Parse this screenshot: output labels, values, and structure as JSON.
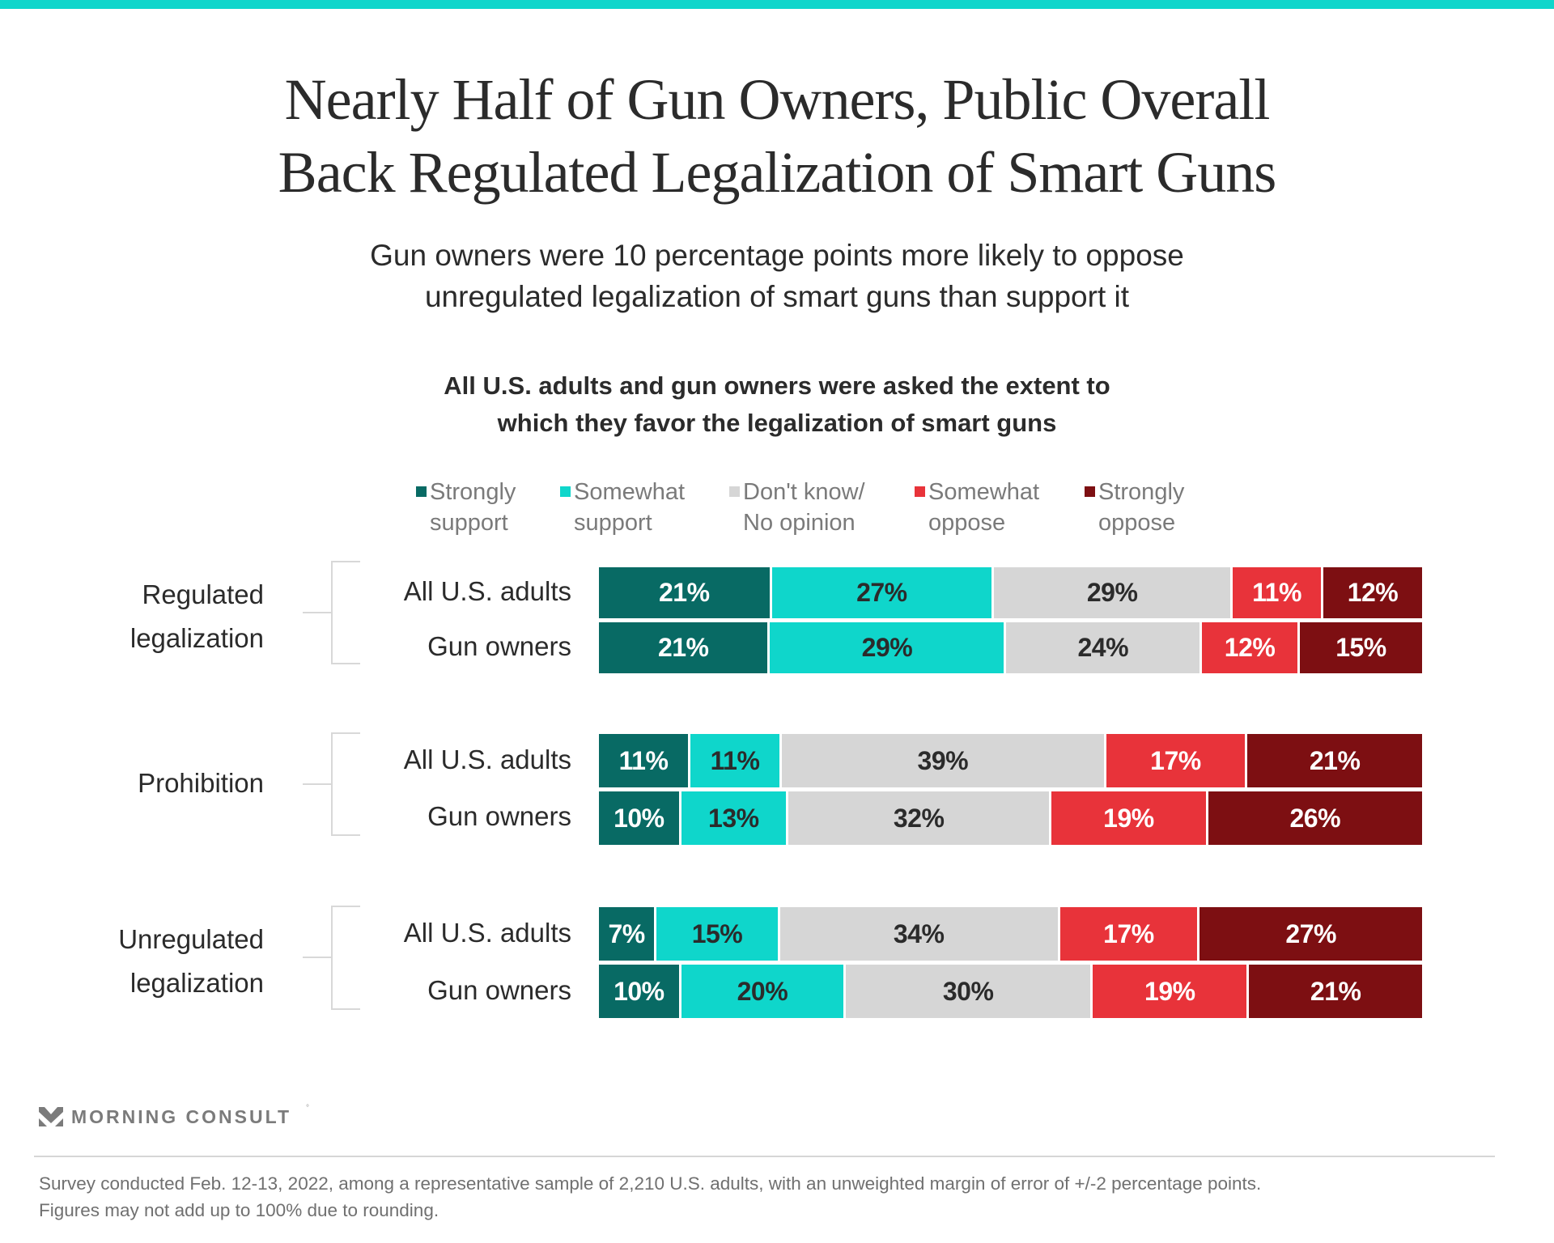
{
  "brand_color": "#0fd6cb",
  "title": {
    "line1": "Nearly Half of Gun Owners, Public Overall",
    "line2": "Back Regulated Legalization of Smart Guns"
  },
  "subtitle": {
    "line1": "Gun owners were 10 percentage points more likely to oppose",
    "line2": "unregulated legalization of smart guns than support it"
  },
  "question": {
    "line1": "All U.S. adults and gun owners were asked the extent to",
    "line2": "which they favor the legalization of smart guns"
  },
  "legend": [
    {
      "line1": "Strongly",
      "line2": "support",
      "color": "#086a64"
    },
    {
      "line1": "Somewhat",
      "line2": "support",
      "color": "#0fd6cb"
    },
    {
      "line1": "Don't know/",
      "line2": "No opinion",
      "color": "#d6d6d6"
    },
    {
      "line1": "Somewhat",
      "line2": "oppose",
      "color": "#e8333a"
    },
    {
      "line1": "Strongly",
      "line2": "oppose",
      "color": "#7d0f12"
    }
  ],
  "chart_data": {
    "type": "bar",
    "orientation": "horizontal-stacked-100",
    "title": "All U.S. adults and gun owners were asked the extent to which they favor the legalization of smart guns",
    "xlabel": "",
    "ylabel": "",
    "legend_position": "top",
    "grid": false,
    "series_names": [
      "Strongly support",
      "Somewhat support",
      "Don't know/No opinion",
      "Somewhat oppose",
      "Strongly oppose"
    ],
    "series_colors": [
      "#086a64",
      "#0fd6cb",
      "#d6d6d6",
      "#e8333a",
      "#7d0f12"
    ],
    "label_colors": [
      "#ffffff",
      "#2b2b2b",
      "#2b2b2b",
      "#ffffff",
      "#ffffff"
    ],
    "groups": [
      {
        "label_lines": [
          "Regulated",
          "legalization"
        ],
        "rows": [
          {
            "label": "All U.S. adults",
            "values": [
              21,
              27,
              29,
              11,
              12
            ]
          },
          {
            "label": "Gun owners",
            "values": [
              21,
              29,
              24,
              12,
              15
            ]
          }
        ]
      },
      {
        "label_lines": [
          "Prohibition"
        ],
        "rows": [
          {
            "label": "All U.S. adults",
            "values": [
              11,
              11,
              39,
              17,
              21
            ]
          },
          {
            "label": "Gun owners",
            "values": [
              10,
              13,
              32,
              19,
              26
            ]
          }
        ]
      },
      {
        "label_lines": [
          "Unregulated",
          "legalization"
        ],
        "rows": [
          {
            "label": "All U.S. adults",
            "values": [
              7,
              15,
              34,
              17,
              27
            ]
          },
          {
            "label": "Gun owners",
            "values": [
              10,
              20,
              30,
              19,
              21
            ]
          }
        ]
      }
    ],
    "value_suffix": "%"
  },
  "logo": {
    "text": "MORNING CONSULT",
    "icon": "morning-consult-chevron-icon"
  },
  "footnote": {
    "line1": "Survey conducted Feb. 12-13, 2022, among a representative sample of 2,210 U.S. adults, with an unweighted margin of error of +/-2 percentage points.",
    "line2": "Figures may not add up to 100% due to rounding."
  }
}
